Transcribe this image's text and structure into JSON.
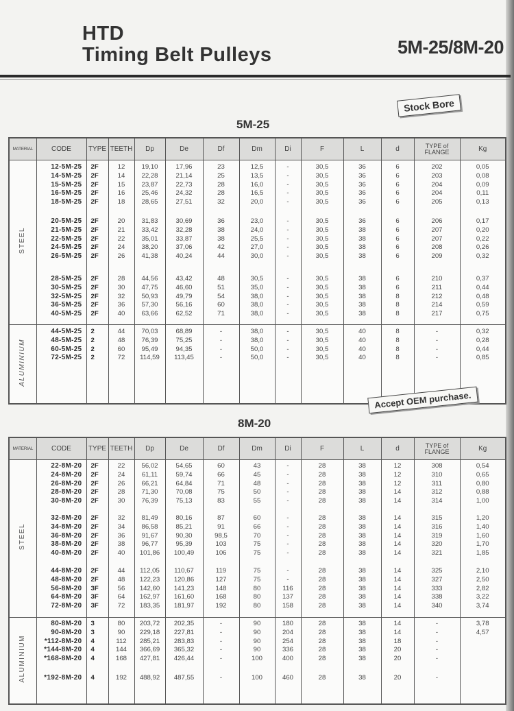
{
  "header": {
    "title_line1": "HTD",
    "title_line2": "Timing Belt Pulleys",
    "series_code": "5M-25/8M-20"
  },
  "stamps": {
    "stock_bore": "Stock Bore",
    "oem": "Accept OEM purchase."
  },
  "columns": [
    "MATERIAL",
    "CODE",
    "TYPE",
    "TEETH",
    "Dp",
    "De",
    "Df",
    "Dm",
    "Di",
    "F",
    "L",
    "d",
    "TYPE of FLANGE",
    "Kg"
  ],
  "tables": [
    {
      "title": "5M-25",
      "sections": [
        {
          "material": "STEEL",
          "groups": [
            [
              [
                "12-5M-25",
                "2F",
                "12",
                "19,10",
                "17,96",
                "23",
                "12,5",
                "-",
                "30,5",
                "36",
                "6",
                "202",
                "0,05"
              ],
              [
                "14-5M-25",
                "2F",
                "14",
                "22,28",
                "21,14",
                "25",
                "13,5",
                "-",
                "30,5",
                "36",
                "6",
                "203",
                "0,08"
              ],
              [
                "15-5M-25",
                "2F",
                "15",
                "23,87",
                "22,73",
                "28",
                "16,0",
                "-",
                "30,5",
                "36",
                "6",
                "204",
                "0,09"
              ],
              [
                "16-5M-25",
                "2F",
                "16",
                "25,46",
                "24,32",
                "28",
                "16,5",
                "-",
                "30,5",
                "36",
                "6",
                "204",
                "0,11"
              ],
              [
                "18-5M-25",
                "2F",
                "18",
                "28,65",
                "27,51",
                "32",
                "20,0",
                "-",
                "30,5",
                "36",
                "6",
                "205",
                "0,13"
              ]
            ],
            [
              [
                "20-5M-25",
                "2F",
                "20",
                "31,83",
                "30,69",
                "36",
                "23,0",
                "-",
                "30,5",
                "36",
                "6",
                "206",
                "0,17"
              ],
              [
                "21-5M-25",
                "2F",
                "21",
                "33,42",
                "32,28",
                "38",
                "24,0",
                "-",
                "30,5",
                "38",
                "6",
                "207",
                "0,20"
              ],
              [
                "22-5M-25",
                "2F",
                "22",
                "35,01",
                "33,87",
                "38",
                "25,5",
                "-",
                "30,5",
                "38",
                "6",
                "207",
                "0,22"
              ],
              [
                "24-5M-25",
                "2F",
                "24",
                "38,20",
                "37,06",
                "42",
                "27,0",
                "-",
                "30,5",
                "38",
                "6",
                "208",
                "0,26"
              ],
              [
                "26-5M-25",
                "2F",
                "26",
                "41,38",
                "40,24",
                "44",
                "30,0",
                "-",
                "30,5",
                "38",
                "6",
                "209",
                "0,32"
              ]
            ],
            [
              [
                "28-5M-25",
                "2F",
                "28",
                "44,56",
                "43,42",
                "48",
                "30,5",
                "-",
                "30,5",
                "38",
                "6",
                "210",
                "0,37"
              ],
              [
                "30-5M-25",
                "2F",
                "30",
                "47,75",
                "46,60",
                "51",
                "35,0",
                "-",
                "30,5",
                "38",
                "6",
                "211",
                "0,44"
              ],
              [
                "32-5M-25",
                "2F",
                "32",
                "50,93",
                "49,79",
                "54",
                "38,0",
                "-",
                "30,5",
                "38",
                "8",
                "212",
                "0,48"
              ],
              [
                "36-5M-25",
                "2F",
                "36",
                "57,30",
                "56,16",
                "60",
                "38,0",
                "-",
                "30,5",
                "38",
                "8",
                "214",
                "0,59"
              ],
              [
                "40-5M-25",
                "2F",
                "40",
                "63,66",
                "62,52",
                "71",
                "38,0",
                "-",
                "30,5",
                "38",
                "8",
                "217",
                "0,75"
              ]
            ]
          ]
        },
        {
          "material": "ALUMINIUM",
          "groups": [
            [
              [
                "44-5M-25",
                "2",
                "44",
                "70,03",
                "68,89",
                "-",
                "38,0",
                "-",
                "30,5",
                "40",
                "8",
                "-",
                "0,32"
              ],
              [
                "48-5M-25",
                "2",
                "48",
                "76,39",
                "75,25",
                "-",
                "38,0",
                "-",
                "30,5",
                "40",
                "8",
                "-",
                "0,28"
              ],
              [
                "60-5M-25",
                "2",
                "60",
                "95,49",
                "94,35",
                "-",
                "50,0",
                "-",
                "30,5",
                "40",
                "8",
                "-",
                "0,44"
              ],
              [
                "72-5M-25",
                "2",
                "72",
                "114,59",
                "113,45",
                "-",
                "50,0",
                "-",
                "30,5",
                "40",
                "8",
                "-",
                "0,85"
              ]
            ]
          ]
        }
      ]
    },
    {
      "title": "8M-20",
      "sections": [
        {
          "material": "STEEL",
          "groups": [
            [
              [
                "22-8M-20",
                "2F",
                "22",
                "56,02",
                "54,65",
                "60",
                "43",
                "-",
                "28",
                "38",
                "12",
                "308",
                "0,54"
              ],
              [
                "24-8M-20",
                "2F",
                "24",
                "61,11",
                "59,74",
                "66",
                "45",
                "-",
                "28",
                "38",
                "12",
                "310",
                "0,65"
              ],
              [
                "26-8M-20",
                "2F",
                "26",
                "66,21",
                "64,84",
                "71",
                "48",
                "-",
                "28",
                "38",
                "12",
                "311",
                "0,80"
              ],
              [
                "28-8M-20",
                "2F",
                "28",
                "71,30",
                "70,08",
                "75",
                "50",
                "-",
                "28",
                "38",
                "14",
                "312",
                "0,88"
              ],
              [
                "30-8M-20",
                "2F",
                "30",
                "76,39",
                "75,13",
                "83",
                "55",
                "-",
                "28",
                "38",
                "14",
                "314",
                "1,00"
              ]
            ],
            [
              [
                "32-8M-20",
                "2F",
                "32",
                "81,49",
                "80,16",
                "87",
                "60",
                "-",
                "28",
                "38",
                "14",
                "315",
                "1,20"
              ],
              [
                "34-8M-20",
                "2F",
                "34",
                "86,58",
                "85,21",
                "91",
                "66",
                "-",
                "28",
                "38",
                "14",
                "316",
                "1,40"
              ],
              [
                "36-8M-20",
                "2F",
                "36",
                "91,67",
                "90,30",
                "98,5",
                "70",
                "-",
                "28",
                "38",
                "14",
                "319",
                "1,60"
              ],
              [
                "38-8M-20",
                "2F",
                "38",
                "96,77",
                "95,39",
                "103",
                "75",
                "-",
                "28",
                "38",
                "14",
                "320",
                "1,70"
              ],
              [
                "40-8M-20",
                "2F",
                "40",
                "101,86",
                "100,49",
                "106",
                "75",
                "-",
                "28",
                "38",
                "14",
                "321",
                "1,85"
              ]
            ],
            [
              [
                "44-8M-20",
                "2F",
                "44",
                "112,05",
                "110,67",
                "119",
                "75",
                "-",
                "28",
                "38",
                "14",
                "325",
                "2,10"
              ],
              [
                "48-8M-20",
                "2F",
                "48",
                "122,23",
                "120,86",
                "127",
                "75",
                "-",
                "28",
                "38",
                "14",
                "327",
                "2,50"
              ],
              [
                "56-8M-20",
                "3F",
                "56",
                "142,60",
                "141,23",
                "148",
                "80",
                "116",
                "28",
                "38",
                "14",
                "333",
                "2,82"
              ],
              [
                "64-8M-20",
                "3F",
                "64",
                "162,97",
                "161,60",
                "168",
                "80",
                "137",
                "28",
                "38",
                "14",
                "338",
                "3,22"
              ],
              [
                "72-8M-20",
                "3F",
                "72",
                "183,35",
                "181,97",
                "192",
                "80",
                "158",
                "28",
                "38",
                "14",
                "340",
                "3,74"
              ]
            ]
          ]
        },
        {
          "material": "ALUMINIUM",
          "groups": [
            [
              [
                "80-8M-20",
                "3",
                "80",
                "203,72",
                "202,35",
                "-",
                "90",
                "180",
                "28",
                "38",
                "14",
                "-",
                "3,78"
              ],
              [
                "90-8M-20",
                "3",
                "90",
                "229,18",
                "227,81",
                "-",
                "90",
                "204",
                "28",
                "38",
                "14",
                "-",
                "4,57"
              ],
              [
                "*112-8M-20",
                "4",
                "112",
                "285,21",
                "283,83",
                "-",
                "90",
                "254",
                "28",
                "38",
                "18",
                "-",
                ""
              ],
              [
                "*144-8M-20",
                "4",
                "144",
                "366,69",
                "365,32",
                "-",
                "90",
                "336",
                "28",
                "38",
                "20",
                "-",
                ""
              ],
              [
                "*168-8M-20",
                "4",
                "168",
                "427,81",
                "426,44",
                "-",
                "100",
                "400",
                "28",
                "38",
                "20",
                "-",
                ""
              ]
            ],
            [
              [
                "*192-8M-20",
                "4",
                "192",
                "488,92",
                "487,55",
                "-",
                "100",
                "460",
                "28",
                "38",
                "20",
                "-",
                ""
              ]
            ]
          ]
        }
      ]
    }
  ]
}
